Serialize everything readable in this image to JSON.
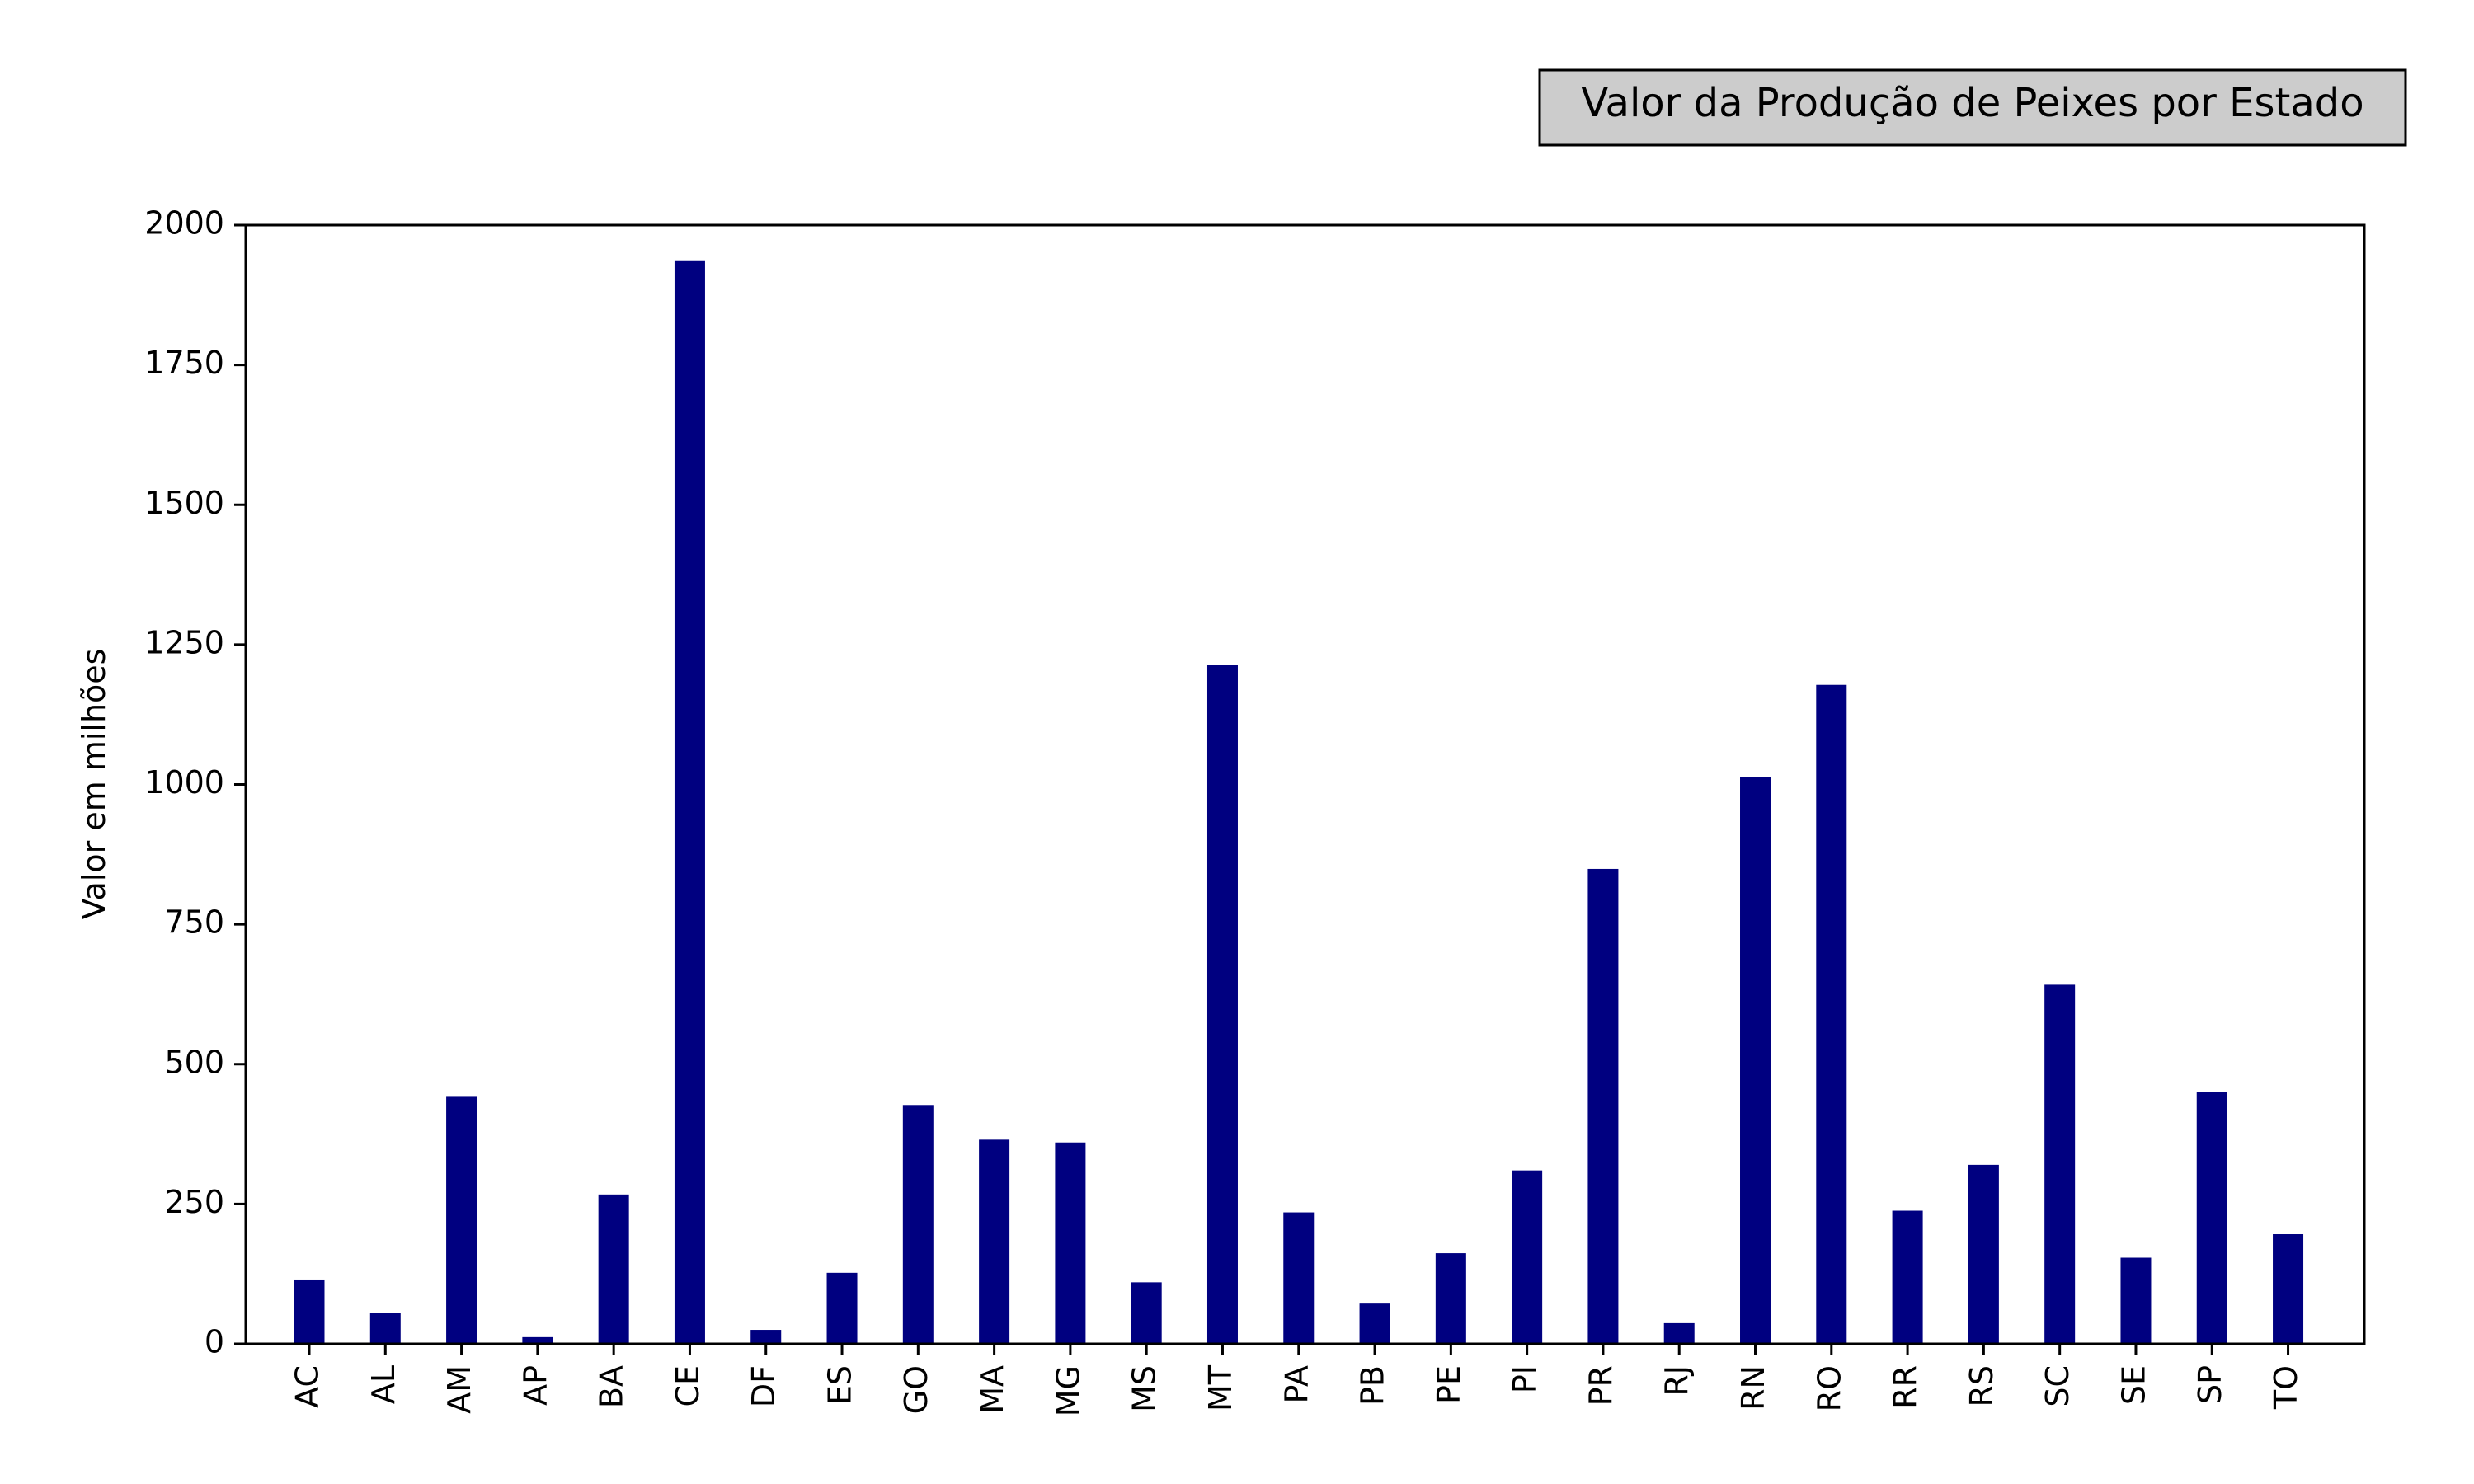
{
  "chart_data": {
    "type": "bar",
    "title": "Valor da Produção de Peixes por Estado",
    "xlabel": "",
    "ylabel": "Valor em milhões",
    "categories": [
      "AC",
      "AL",
      "AM",
      "AP",
      "BA",
      "CE",
      "DF",
      "ES",
      "GO",
      "MA",
      "MG",
      "MS",
      "MT",
      "PA",
      "PB",
      "PE",
      "PI",
      "PR",
      "RJ",
      "RN",
      "RO",
      "RR",
      "RS",
      "SC",
      "SE",
      "SP",
      "TO"
    ],
    "values": [
      115,
      55,
      443,
      12,
      267,
      1937,
      25,
      127,
      427,
      365,
      360,
      110,
      1214,
      235,
      72,
      162,
      310,
      849,
      37,
      1014,
      1178,
      238,
      320,
      642,
      154,
      451,
      196
    ],
    "ylim": [
      0,
      2000
    ],
    "yticks": [
      0,
      250,
      500,
      750,
      1000,
      1250,
      1500,
      1750,
      2000
    ],
    "grid": false,
    "colors": {
      "bar": "#000080",
      "title_box_fill": "#cccccc",
      "title_box_stroke": "#000000",
      "axis": "#000000"
    }
  }
}
